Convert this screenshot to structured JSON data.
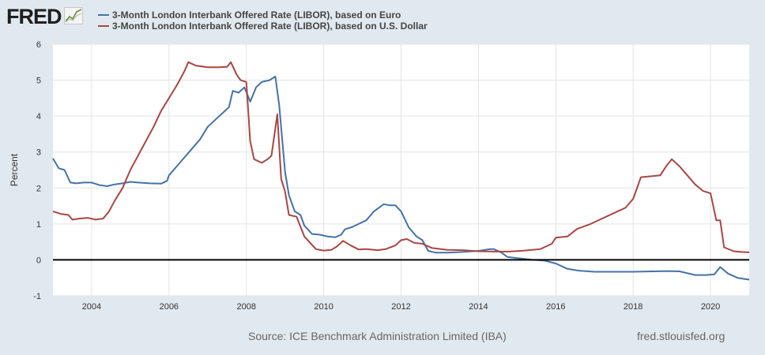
{
  "logo": {
    "text": "FRED"
  },
  "legend": [
    {
      "label": "3-Month London Interbank Offered Rate (LIBOR), based on Euro",
      "color": "#4572a7"
    },
    {
      "label": "3-Month London Interbank Offered Rate (LIBOR), based on U.S. Dollar",
      "color": "#aa4643"
    }
  ],
  "footer": {
    "source": "Source: ICE Benchmark Administration Limited (IBA)",
    "site": "fred.stlouisfed.org"
  },
  "chart_data": {
    "type": "line",
    "title": "",
    "xlabel": "",
    "ylabel": "Percent",
    "xlim": [
      2003.0,
      2021.0
    ],
    "ylim": [
      -1,
      6
    ],
    "yticks": [
      -1,
      0,
      1,
      2,
      3,
      4,
      5,
      6
    ],
    "xticks": [
      2004,
      2006,
      2008,
      2010,
      2012,
      2014,
      2016,
      2018,
      2020
    ],
    "grid": true,
    "zero_line": true,
    "series": [
      {
        "name": "3-Month London Interbank Offered Rate (LIBOR), based on Euro",
        "color": "#4572a7",
        "points": [
          [
            2003.0,
            2.82
          ],
          [
            2003.15,
            2.55
          ],
          [
            2003.3,
            2.5
          ],
          [
            2003.45,
            2.15
          ],
          [
            2003.6,
            2.13
          ],
          [
            2003.8,
            2.15
          ],
          [
            2004.0,
            2.15
          ],
          [
            2004.2,
            2.08
          ],
          [
            2004.4,
            2.05
          ],
          [
            2004.6,
            2.1
          ],
          [
            2004.8,
            2.13
          ],
          [
            2005.0,
            2.17
          ],
          [
            2005.2,
            2.15
          ],
          [
            2005.5,
            2.13
          ],
          [
            2005.8,
            2.12
          ],
          [
            2005.95,
            2.2
          ],
          [
            2006.0,
            2.35
          ],
          [
            2006.2,
            2.6
          ],
          [
            2006.4,
            2.85
          ],
          [
            2006.6,
            3.1
          ],
          [
            2006.8,
            3.35
          ],
          [
            2007.0,
            3.7
          ],
          [
            2007.2,
            3.9
          ],
          [
            2007.4,
            4.1
          ],
          [
            2007.55,
            4.25
          ],
          [
            2007.65,
            4.7
          ],
          [
            2007.8,
            4.65
          ],
          [
            2007.95,
            4.8
          ],
          [
            2008.1,
            4.4
          ],
          [
            2008.25,
            4.8
          ],
          [
            2008.4,
            4.95
          ],
          [
            2008.6,
            5.0
          ],
          [
            2008.75,
            5.1
          ],
          [
            2008.85,
            4.3
          ],
          [
            2009.0,
            2.45
          ],
          [
            2009.1,
            1.8
          ],
          [
            2009.25,
            1.35
          ],
          [
            2009.4,
            1.25
          ],
          [
            2009.5,
            0.95
          ],
          [
            2009.7,
            0.72
          ],
          [
            2009.9,
            0.7
          ],
          [
            2010.1,
            0.65
          ],
          [
            2010.3,
            0.63
          ],
          [
            2010.45,
            0.7
          ],
          [
            2010.55,
            0.85
          ],
          [
            2010.75,
            0.92
          ],
          [
            2010.9,
            1.0
          ],
          [
            2011.1,
            1.1
          ],
          [
            2011.3,
            1.35
          ],
          [
            2011.55,
            1.55
          ],
          [
            2011.7,
            1.52
          ],
          [
            2011.85,
            1.52
          ],
          [
            2012.0,
            1.35
          ],
          [
            2012.2,
            0.9
          ],
          [
            2012.4,
            0.65
          ],
          [
            2012.55,
            0.55
          ],
          [
            2012.7,
            0.25
          ],
          [
            2012.9,
            0.2
          ],
          [
            2013.2,
            0.2
          ],
          [
            2013.6,
            0.22
          ],
          [
            2014.0,
            0.25
          ],
          [
            2014.3,
            0.3
          ],
          [
            2014.4,
            0.3
          ],
          [
            2014.6,
            0.2
          ],
          [
            2014.75,
            0.08
          ],
          [
            2015.0,
            0.05
          ],
          [
            2015.4,
            0.0
          ],
          [
            2015.7,
            -0.02
          ],
          [
            2016.0,
            -0.1
          ],
          [
            2016.3,
            -0.25
          ],
          [
            2016.6,
            -0.3
          ],
          [
            2017.0,
            -0.33
          ],
          [
            2017.5,
            -0.33
          ],
          [
            2018.0,
            -0.33
          ],
          [
            2018.5,
            -0.32
          ],
          [
            2018.9,
            -0.31
          ],
          [
            2019.2,
            -0.32
          ],
          [
            2019.6,
            -0.42
          ],
          [
            2019.9,
            -0.42
          ],
          [
            2020.1,
            -0.4
          ],
          [
            2020.25,
            -0.2
          ],
          [
            2020.45,
            -0.38
          ],
          [
            2020.7,
            -0.5
          ],
          [
            2021.0,
            -0.55
          ]
        ]
      },
      {
        "name": "3-Month London Interbank Offered Rate (LIBOR), based on U.S. Dollar",
        "color": "#aa4643",
        "points": [
          [
            2003.0,
            1.35
          ],
          [
            2003.2,
            1.28
          ],
          [
            2003.4,
            1.25
          ],
          [
            2003.5,
            1.12
          ],
          [
            2003.7,
            1.15
          ],
          [
            2003.9,
            1.17
          ],
          [
            2004.1,
            1.12
          ],
          [
            2004.3,
            1.15
          ],
          [
            2004.45,
            1.35
          ],
          [
            2004.6,
            1.65
          ],
          [
            2004.8,
            2.0
          ],
          [
            2005.0,
            2.5
          ],
          [
            2005.2,
            2.9
          ],
          [
            2005.4,
            3.3
          ],
          [
            2005.6,
            3.7
          ],
          [
            2005.8,
            4.15
          ],
          [
            2006.0,
            4.5
          ],
          [
            2006.2,
            4.85
          ],
          [
            2006.4,
            5.25
          ],
          [
            2006.5,
            5.5
          ],
          [
            2006.7,
            5.4
          ],
          [
            2007.0,
            5.36
          ],
          [
            2007.3,
            5.36
          ],
          [
            2007.5,
            5.37
          ],
          [
            2007.6,
            5.5
          ],
          [
            2007.75,
            5.15
          ],
          [
            2007.85,
            5.0
          ],
          [
            2008.0,
            4.95
          ],
          [
            2008.1,
            3.3
          ],
          [
            2008.2,
            2.8
          ],
          [
            2008.3,
            2.75
          ],
          [
            2008.4,
            2.7
          ],
          [
            2008.55,
            2.8
          ],
          [
            2008.65,
            2.9
          ],
          [
            2008.8,
            4.05
          ],
          [
            2008.9,
            2.25
          ],
          [
            2009.0,
            1.9
          ],
          [
            2009.1,
            1.25
          ],
          [
            2009.3,
            1.2
          ],
          [
            2009.5,
            0.65
          ],
          [
            2009.8,
            0.3
          ],
          [
            2010.0,
            0.26
          ],
          [
            2010.2,
            0.28
          ],
          [
            2010.35,
            0.38
          ],
          [
            2010.5,
            0.53
          ],
          [
            2010.7,
            0.4
          ],
          [
            2010.9,
            0.29
          ],
          [
            2011.1,
            0.3
          ],
          [
            2011.4,
            0.27
          ],
          [
            2011.6,
            0.3
          ],
          [
            2011.85,
            0.4
          ],
          [
            2012.0,
            0.55
          ],
          [
            2012.15,
            0.58
          ],
          [
            2012.35,
            0.47
          ],
          [
            2012.55,
            0.45
          ],
          [
            2012.8,
            0.33
          ],
          [
            2013.2,
            0.28
          ],
          [
            2013.6,
            0.27
          ],
          [
            2014.0,
            0.24
          ],
          [
            2014.4,
            0.23
          ],
          [
            2014.8,
            0.23
          ],
          [
            2015.2,
            0.26
          ],
          [
            2015.6,
            0.3
          ],
          [
            2015.9,
            0.45
          ],
          [
            2016.0,
            0.62
          ],
          [
            2016.3,
            0.65
          ],
          [
            2016.55,
            0.86
          ],
          [
            2016.9,
            1.0
          ],
          [
            2017.2,
            1.15
          ],
          [
            2017.5,
            1.3
          ],
          [
            2017.8,
            1.45
          ],
          [
            2018.0,
            1.7
          ],
          [
            2018.2,
            2.3
          ],
          [
            2018.5,
            2.33
          ],
          [
            2018.7,
            2.35
          ],
          [
            2018.85,
            2.6
          ],
          [
            2019.0,
            2.8
          ],
          [
            2019.2,
            2.6
          ],
          [
            2019.4,
            2.35
          ],
          [
            2019.6,
            2.1
          ],
          [
            2019.8,
            1.92
          ],
          [
            2020.0,
            1.85
          ],
          [
            2020.15,
            1.1
          ],
          [
            2020.25,
            1.1
          ],
          [
            2020.35,
            0.35
          ],
          [
            2020.6,
            0.24
          ],
          [
            2020.8,
            0.22
          ],
          [
            2021.0,
            0.21
          ]
        ]
      }
    ]
  }
}
